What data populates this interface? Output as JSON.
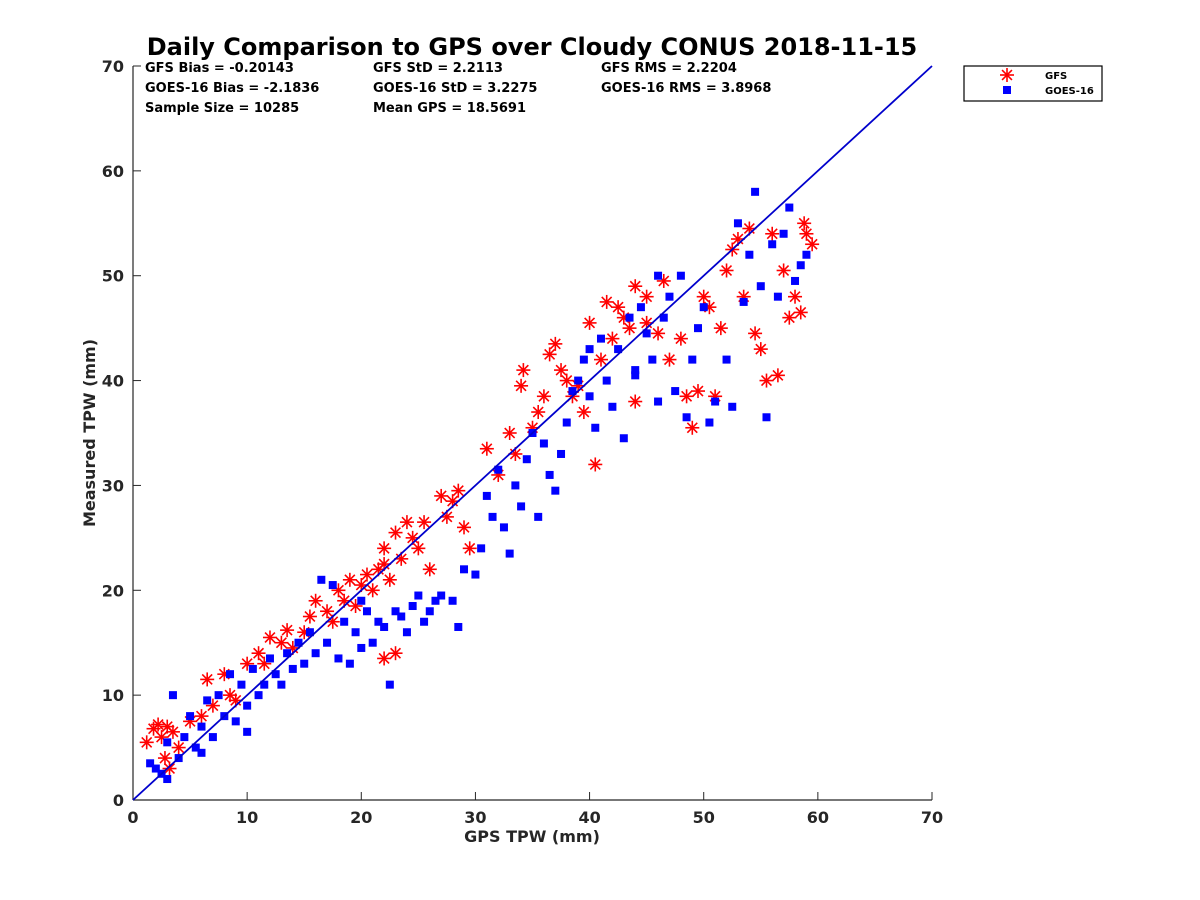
{
  "chart_data": {
    "type": "scatter",
    "title": "Daily Comparison to GPS over Cloudy CONUS 2018-11-15",
    "xlabel": "GPS TPW (mm)",
    "ylabel": "Measured TPW (mm)",
    "xlim": [
      0,
      70
    ],
    "ylim": [
      0,
      70
    ],
    "xticks": [
      0,
      10,
      20,
      30,
      40,
      50,
      60,
      70
    ],
    "yticks": [
      0,
      10,
      20,
      30,
      40,
      50,
      60,
      70
    ],
    "grid": false,
    "legend_position": "outside-top-right",
    "reference_line": {
      "x": [
        0,
        70
      ],
      "y": [
        0,
        70
      ],
      "color": "#0000cc"
    },
    "stats": {
      "col1": [
        "GFS Bias = -0.20143",
        "GOES-16 Bias = -2.1836",
        "Sample Size = 10285"
      ],
      "col2": [
        "GFS StD = 2.2113",
        "GOES-16 StD = 3.2275",
        "Mean GPS = 18.5691"
      ],
      "col3": [
        "GFS RMS = 2.2204",
        "GOES-16 RMS = 3.8968"
      ]
    },
    "series": [
      {
        "name": "GFS",
        "marker": "asterisk",
        "color": "#ff0000",
        "points": [
          [
            1.2,
            5.5
          ],
          [
            1.8,
            6.8
          ],
          [
            2.2,
            7.2
          ],
          [
            2.5,
            6.0
          ],
          [
            3.0,
            7.0
          ],
          [
            3.5,
            6.5
          ],
          [
            2.8,
            4.0
          ],
          [
            3.2,
            3.0
          ],
          [
            4.0,
            5.0
          ],
          [
            5.0,
            7.5
          ],
          [
            6.0,
            8.0
          ],
          [
            6.5,
            11.5
          ],
          [
            7.0,
            9.0
          ],
          [
            8.0,
            12.0
          ],
          [
            8.5,
            10.0
          ],
          [
            9.0,
            9.5
          ],
          [
            10.0,
            13.0
          ],
          [
            11.0,
            14.0
          ],
          [
            11.5,
            13.0
          ],
          [
            12.0,
            15.5
          ],
          [
            13.0,
            15.0
          ],
          [
            13.5,
            16.2
          ],
          [
            14.0,
            14.5
          ],
          [
            15.0,
            16.0
          ],
          [
            15.5,
            17.5
          ],
          [
            16.0,
            19.0
          ],
          [
            17.0,
            18.0
          ],
          [
            17.5,
            17.0
          ],
          [
            18.0,
            20.0
          ],
          [
            18.5,
            19.0
          ],
          [
            19.0,
            21.0
          ],
          [
            19.5,
            18.5
          ],
          [
            20.0,
            20.5
          ],
          [
            20.5,
            21.5
          ],
          [
            21.0,
            20.0
          ],
          [
            21.5,
            22.0
          ],
          [
            22.0,
            22.5
          ],
          [
            22.5,
            21.0
          ],
          [
            22.0,
            24.0
          ],
          [
            23.0,
            25.5
          ],
          [
            23.5,
            23.0
          ],
          [
            24.0,
            26.5
          ],
          [
            24.5,
            25.0
          ],
          [
            25.0,
            24.0
          ],
          [
            25.5,
            26.5
          ],
          [
            26.0,
            22.0
          ],
          [
            27.0,
            29.0
          ],
          [
            27.5,
            27.0
          ],
          [
            28.0,
            28.5
          ],
          [
            28.5,
            29.5
          ],
          [
            29.0,
            26.0
          ],
          [
            29.5,
            24.0
          ],
          [
            31.0,
            33.5
          ],
          [
            32.0,
            31.0
          ],
          [
            33.0,
            35.0
          ],
          [
            33.5,
            33.0
          ],
          [
            34.0,
            39.5
          ],
          [
            34.2,
            41.0
          ],
          [
            35.0,
            35.5
          ],
          [
            35.5,
            37.0
          ],
          [
            36.0,
            38.5
          ],
          [
            36.5,
            42.5
          ],
          [
            37.0,
            43.5
          ],
          [
            37.5,
            41.0
          ],
          [
            38.0,
            40.0
          ],
          [
            38.5,
            38.5
          ],
          [
            39.0,
            39.5
          ],
          [
            39.5,
            37.0
          ],
          [
            40.0,
            45.5
          ],
          [
            41.0,
            42.0
          ],
          [
            41.5,
            47.5
          ],
          [
            42.0,
            44.0
          ],
          [
            42.5,
            47.0
          ],
          [
            43.0,
            46.0
          ],
          [
            43.5,
            45.0
          ],
          [
            44.0,
            49.0
          ],
          [
            45.0,
            48.0
          ],
          [
            46.0,
            44.5
          ],
          [
            46.5,
            49.5
          ],
          [
            47.0,
            42.0
          ],
          [
            48.0,
            44.0
          ],
          [
            48.5,
            38.5
          ],
          [
            49.0,
            35.5
          ],
          [
            49.5,
            39.0
          ],
          [
            50.0,
            48.0
          ],
          [
            51.0,
            38.5
          ],
          [
            51.5,
            45.0
          ],
          [
            52.0,
            50.5
          ],
          [
            52.5,
            52.5
          ],
          [
            53.0,
            53.5
          ],
          [
            53.5,
            48.0
          ],
          [
            54.0,
            54.5
          ],
          [
            54.5,
            44.5
          ],
          [
            55.0,
            43.0
          ],
          [
            55.5,
            40.0
          ],
          [
            56.0,
            54.0
          ],
          [
            56.5,
            40.5
          ],
          [
            57.0,
            50.5
          ],
          [
            57.5,
            46.0
          ],
          [
            58.0,
            48.0
          ],
          [
            58.5,
            46.5
          ],
          [
            58.8,
            55.0
          ],
          [
            59.0,
            54.0
          ],
          [
            59.5,
            53.0
          ],
          [
            23.0,
            14.0
          ],
          [
            22.0,
            13.5
          ],
          [
            40.5,
            32.0
          ],
          [
            44.0,
            38.0
          ],
          [
            45.0,
            45.5
          ],
          [
            50.5,
            47.0
          ]
        ]
      },
      {
        "name": "GOES-16",
        "marker": "square",
        "color": "#0000ff",
        "points": [
          [
            1.5,
            3.5
          ],
          [
            2.0,
            3.0
          ],
          [
            2.5,
            2.5
          ],
          [
            3.0,
            5.5
          ],
          [
            3.5,
            10.0
          ],
          [
            4.0,
            4.0
          ],
          [
            4.5,
            6.0
          ],
          [
            5.0,
            8.0
          ],
          [
            5.5,
            5.0
          ],
          [
            6.0,
            7.0
          ],
          [
            6.5,
            9.5
          ],
          [
            7.0,
            6.0
          ],
          [
            7.5,
            10.0
          ],
          [
            8.0,
            8.0
          ],
          [
            8.5,
            12.0
          ],
          [
            9.0,
            7.5
          ],
          [
            9.5,
            11.0
          ],
          [
            10.0,
            9.0
          ],
          [
            10.5,
            12.5
          ],
          [
            11.0,
            10.0
          ],
          [
            11.5,
            11.0
          ],
          [
            12.0,
            13.5
          ],
          [
            12.5,
            12.0
          ],
          [
            13.0,
            11.0
          ],
          [
            13.5,
            14.0
          ],
          [
            14.0,
            12.5
          ],
          [
            14.5,
            15.0
          ],
          [
            15.0,
            13.0
          ],
          [
            15.5,
            16.0
          ],
          [
            16.0,
            14.0
          ],
          [
            16.5,
            21.0
          ],
          [
            17.0,
            15.0
          ],
          [
            17.5,
            20.5
          ],
          [
            18.0,
            13.5
          ],
          [
            18.5,
            17.0
          ],
          [
            19.0,
            13.0
          ],
          [
            19.5,
            16.0
          ],
          [
            20.0,
            14.5
          ],
          [
            20.5,
            18.0
          ],
          [
            21.0,
            15.0
          ],
          [
            21.5,
            17.0
          ],
          [
            22.0,
            16.5
          ],
          [
            22.5,
            11.0
          ],
          [
            23.0,
            18.0
          ],
          [
            23.5,
            17.5
          ],
          [
            24.0,
            16.0
          ],
          [
            24.5,
            18.5
          ],
          [
            25.0,
            19.5
          ],
          [
            25.5,
            17.0
          ],
          [
            26.0,
            18.0
          ],
          [
            26.5,
            19.0
          ],
          [
            27.0,
            19.5
          ],
          [
            28.0,
            19.0
          ],
          [
            28.5,
            16.5
          ],
          [
            29.0,
            22.0
          ],
          [
            30.0,
            21.5
          ],
          [
            30.5,
            24.0
          ],
          [
            31.0,
            29.0
          ],
          [
            31.5,
            27.0
          ],
          [
            32.0,
            31.5
          ],
          [
            32.5,
            26.0
          ],
          [
            33.0,
            23.5
          ],
          [
            33.5,
            30.0
          ],
          [
            34.0,
            28.0
          ],
          [
            34.5,
            32.5
          ],
          [
            35.0,
            35.0
          ],
          [
            35.5,
            27.0
          ],
          [
            36.0,
            34.0
          ],
          [
            36.5,
            31.0
          ],
          [
            37.0,
            29.5
          ],
          [
            37.5,
            33.0
          ],
          [
            38.0,
            36.0
          ],
          [
            38.5,
            39.0
          ],
          [
            39.0,
            40.0
          ],
          [
            39.5,
            42.0
          ],
          [
            40.0,
            38.5
          ],
          [
            40.5,
            35.5
          ],
          [
            41.0,
            44.0
          ],
          [
            41.5,
            40.0
          ],
          [
            42.0,
            37.5
          ],
          [
            42.5,
            43.0
          ],
          [
            43.0,
            34.5
          ],
          [
            43.5,
            46.0
          ],
          [
            44.0,
            41.0
          ],
          [
            44.5,
            47.0
          ],
          [
            45.0,
            44.5
          ],
          [
            45.5,
            42.0
          ],
          [
            46.0,
            50.0
          ],
          [
            46.5,
            46.0
          ],
          [
            47.0,
            48.0
          ],
          [
            47.5,
            39.0
          ],
          [
            48.0,
            50.0
          ],
          [
            48.5,
            36.5
          ],
          [
            49.0,
            42.0
          ],
          [
            49.5,
            45.0
          ],
          [
            50.0,
            47.0
          ],
          [
            50.5,
            36.0
          ],
          [
            51.0,
            38.0
          ],
          [
            52.0,
            42.0
          ],
          [
            52.5,
            37.5
          ],
          [
            53.0,
            55.0
          ],
          [
            53.5,
            47.5
          ],
          [
            54.0,
            52.0
          ],
          [
            54.5,
            58.0
          ],
          [
            55.0,
            49.0
          ],
          [
            55.5,
            36.5
          ],
          [
            56.0,
            53.0
          ],
          [
            56.5,
            48.0
          ],
          [
            57.0,
            54.0
          ],
          [
            57.5,
            56.5
          ],
          [
            58.0,
            49.5
          ],
          [
            58.5,
            51.0
          ],
          [
            59.0,
            52.0
          ],
          [
            44.0,
            40.5
          ],
          [
            46.0,
            38.0
          ],
          [
            40.0,
            43.0
          ],
          [
            20.0,
            19.0
          ],
          [
            10.0,
            6.5
          ],
          [
            6.0,
            4.5
          ],
          [
            3.0,
            2.0
          ]
        ]
      }
    ]
  }
}
